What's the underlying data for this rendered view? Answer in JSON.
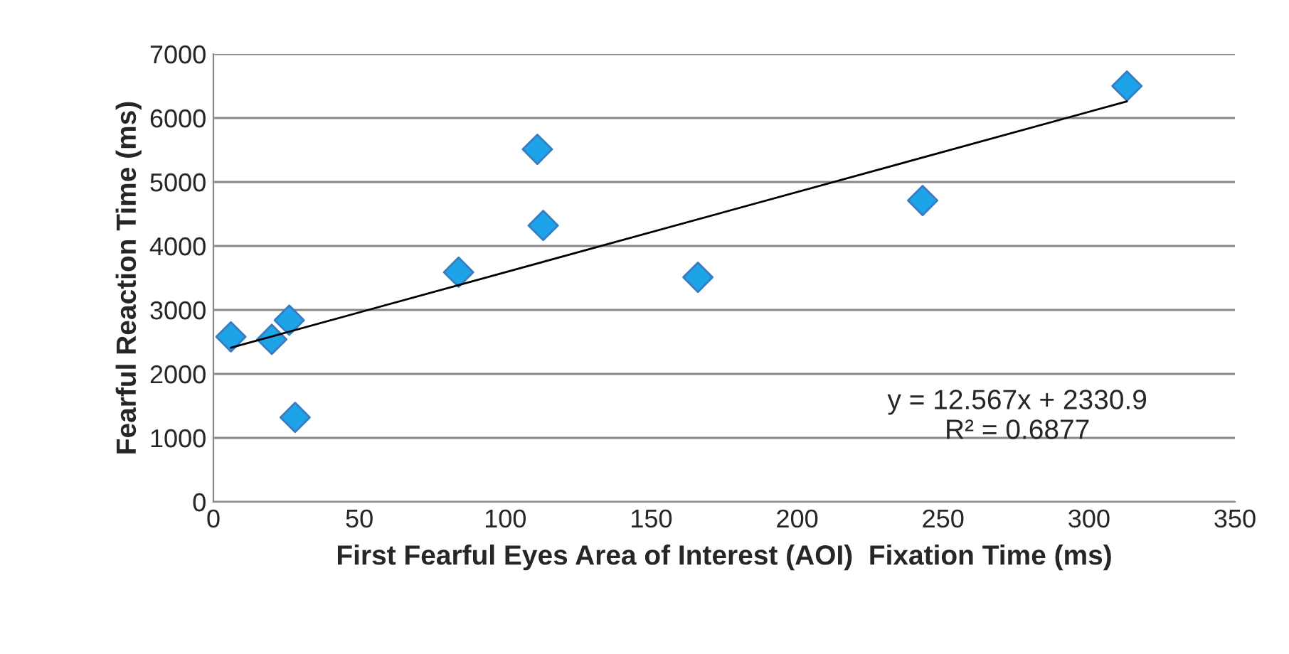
{
  "chart_data": {
    "type": "scatter",
    "xlabel": "First Fearful Eyes Area of Interest (AOI)  Fixation Time (ms)",
    "ylabel": "Fearful Reaction Time (ms)",
    "series": [
      {
        "color": "#1ca3e8",
        "marker": "diamond",
        "x": [
          6,
          20,
          26,
          28,
          84,
          111,
          113,
          166,
          243,
          313
        ],
        "values": [
          2580,
          2540,
          2840,
          1320,
          3590,
          5510,
          4320,
          3510,
          4710,
          6500
        ]
      },
      {
        "type": "line",
        "color": "#000000",
        "line_style": "solid",
        "x": [
          6,
          313
        ],
        "values": [
          2410,
          6260
        ]
      }
    ],
    "annotations": [
      "y = 12.567x + 2330.9\nR² = 0.6877"
    ],
    "xlim": [
      0,
      350
    ],
    "xticks": [
      0,
      50,
      100,
      150,
      200,
      250,
      300,
      350
    ],
    "ylim": [
      0,
      7000
    ],
    "yticks": [
      0,
      1000,
      2000,
      3000,
      4000,
      5000,
      6000,
      7000
    ],
    "grid": "y"
  }
}
